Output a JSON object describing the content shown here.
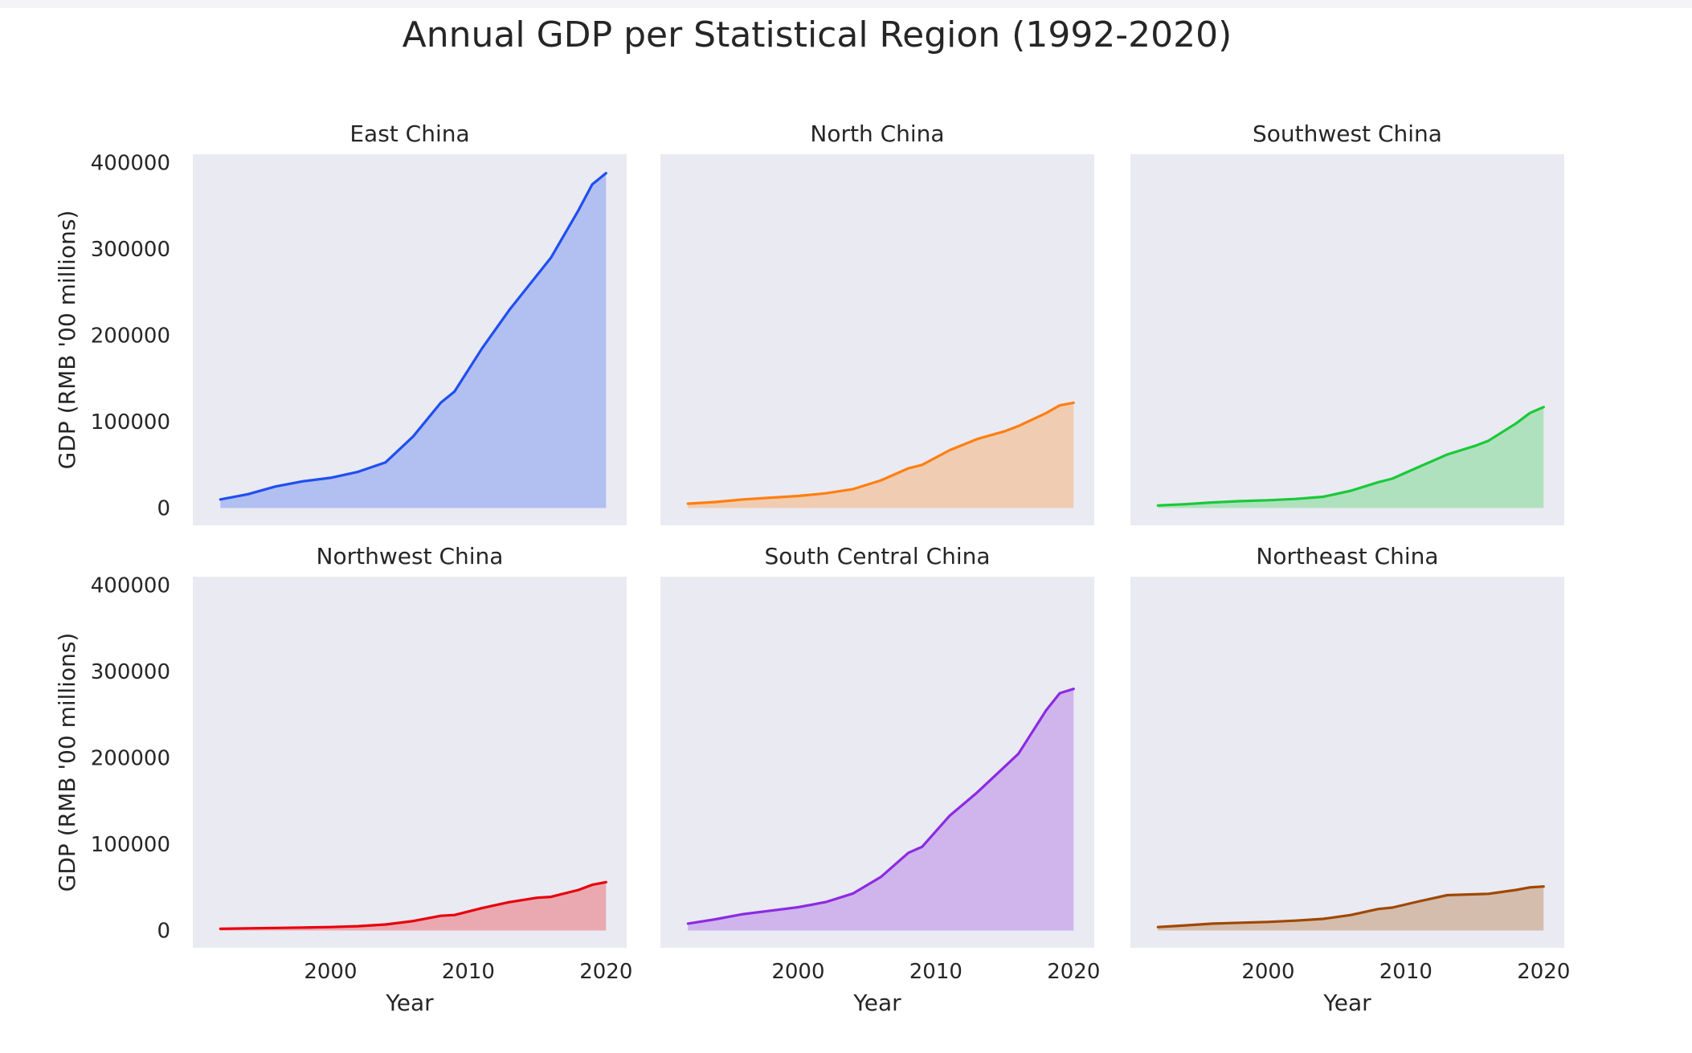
{
  "chart_data": {
    "type": "area",
    "title": "Annual GDP per Statistical Region (1992-2020)",
    "xlabel": "Year",
    "ylabel": "GDP (RMB '00 millions)",
    "xlim": [
      1990,
      2021.5
    ],
    "ylim": [
      -20000,
      410000
    ],
    "xticks": [
      2000,
      2010,
      2020
    ],
    "yticks": [
      0,
      100000,
      200000,
      300000,
      400000
    ],
    "grid": false,
    "x": [
      1992,
      1994,
      1996,
      1998,
      2000,
      2002,
      2004,
      2006,
      2008,
      2009,
      2011,
      2013,
      2015,
      2016,
      2018,
      2019,
      2020
    ],
    "series": [
      {
        "name": "East China",
        "color": "#1f4ff0",
        "values": [
          10000,
          16000,
          25000,
          31000,
          35000,
          42000,
          53000,
          83000,
          122000,
          135000,
          185000,
          230000,
          270000,
          290000,
          345000,
          375000,
          388000
        ]
      },
      {
        "name": "North China",
        "color": "#ff7f0e",
        "values": [
          5000,
          7000,
          10000,
          12000,
          14000,
          17000,
          22000,
          32000,
          46000,
          50000,
          67000,
          80000,
          89000,
          95000,
          110000,
          119000,
          122000
        ]
      },
      {
        "name": "Southwest China",
        "color": "#1ac938",
        "values": [
          3000,
          4500,
          6500,
          8000,
          9000,
          10500,
          13000,
          20000,
          30000,
          34000,
          48000,
          62000,
          72000,
          78000,
          98000,
          110000,
          117000
        ]
      },
      {
        "name": "Northwest China",
        "color": "#e8000b",
        "values": [
          2000,
          2500,
          3000,
          3500,
          4000,
          5000,
          7000,
          11000,
          17000,
          18000,
          26000,
          33000,
          38000,
          39000,
          47000,
          53000,
          56000
        ]
      },
      {
        "name": "South Central China",
        "color": "#8b2be2",
        "values": [
          8000,
          13000,
          19000,
          23000,
          27000,
          33000,
          43000,
          62000,
          90000,
          97000,
          133000,
          160000,
          190000,
          205000,
          255000,
          275000,
          280000
        ]
      },
      {
        "name": "Northeast China",
        "color": "#9f4800",
        "values": [
          4000,
          6000,
          8000,
          9000,
          10000,
          11500,
          13500,
          18000,
          25000,
          26500,
          34000,
          41000,
          42000,
          42500,
          47000,
          50000,
          51000
        ]
      }
    ]
  }
}
